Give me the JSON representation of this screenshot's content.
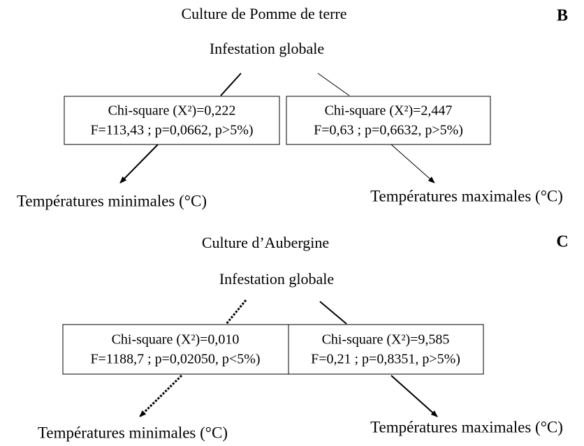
{
  "panels": [
    {
      "label": "B",
      "title": "Culture de Pomme de terre",
      "root": "Infestation globale",
      "boxes": [
        {
          "line1": "Chi-square (X²)=0,222",
          "line2": "F=113,43 ; p=0,0662, p>5%)"
        },
        {
          "line1": "Chi-square (X²)=2,447",
          "line2": "F=0,63 ; p=0,6632, p>5%)"
        }
      ],
      "leaves": [
        "Températures minimales (°C)",
        "Températures maximales (°C)"
      ]
    },
    {
      "label": "C",
      "title": "Culture d’Aubergine",
      "root": "Infestation globale",
      "boxes": [
        {
          "line1": "Chi-square (X²)=0,010",
          "line2": "F=1188,7 ; p=0,02050, p<5%)"
        },
        {
          "line1": "Chi-square (X²)=9,585",
          "line2": "F=0,21 ; p=0,8351, p>5%)"
        }
      ],
      "leaves": [
        "Températures minimales (°C)",
        "Températures maximales (°C)"
      ]
    }
  ]
}
